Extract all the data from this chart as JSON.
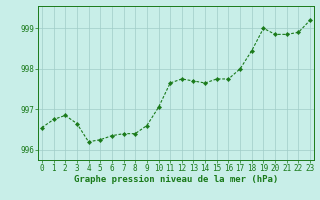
{
  "x": [
    0,
    1,
    2,
    3,
    4,
    5,
    6,
    7,
    8,
    9,
    10,
    11,
    12,
    13,
    14,
    15,
    16,
    17,
    18,
    19,
    20,
    21,
    22,
    23
  ],
  "y": [
    996.55,
    996.75,
    996.85,
    996.65,
    996.2,
    996.25,
    996.35,
    996.4,
    996.4,
    996.6,
    997.05,
    997.65,
    997.75,
    997.7,
    997.65,
    997.75,
    997.75,
    998.0,
    998.45,
    999.0,
    998.85,
    998.85,
    998.9,
    999.2
  ],
  "line_color": "#1a7a1a",
  "marker": "D",
  "marker_size": 2.2,
  "bg_color": "#c8eee8",
  "grid_color": "#a0ccc8",
  "xlabel": "Graphe pression niveau de la mer (hPa)",
  "xlabel_color": "#1a7a1a",
  "xlabel_fontsize": 6.5,
  "tick_color": "#1a7a1a",
  "tick_fontsize": 5.5,
  "ylim": [
    995.75,
    999.55
  ],
  "yticks": [
    996,
    997,
    998,
    999
  ],
  "xticks": [
    0,
    1,
    2,
    3,
    4,
    5,
    6,
    7,
    8,
    9,
    10,
    11,
    12,
    13,
    14,
    15,
    16,
    17,
    18,
    19,
    20,
    21,
    22,
    23
  ]
}
